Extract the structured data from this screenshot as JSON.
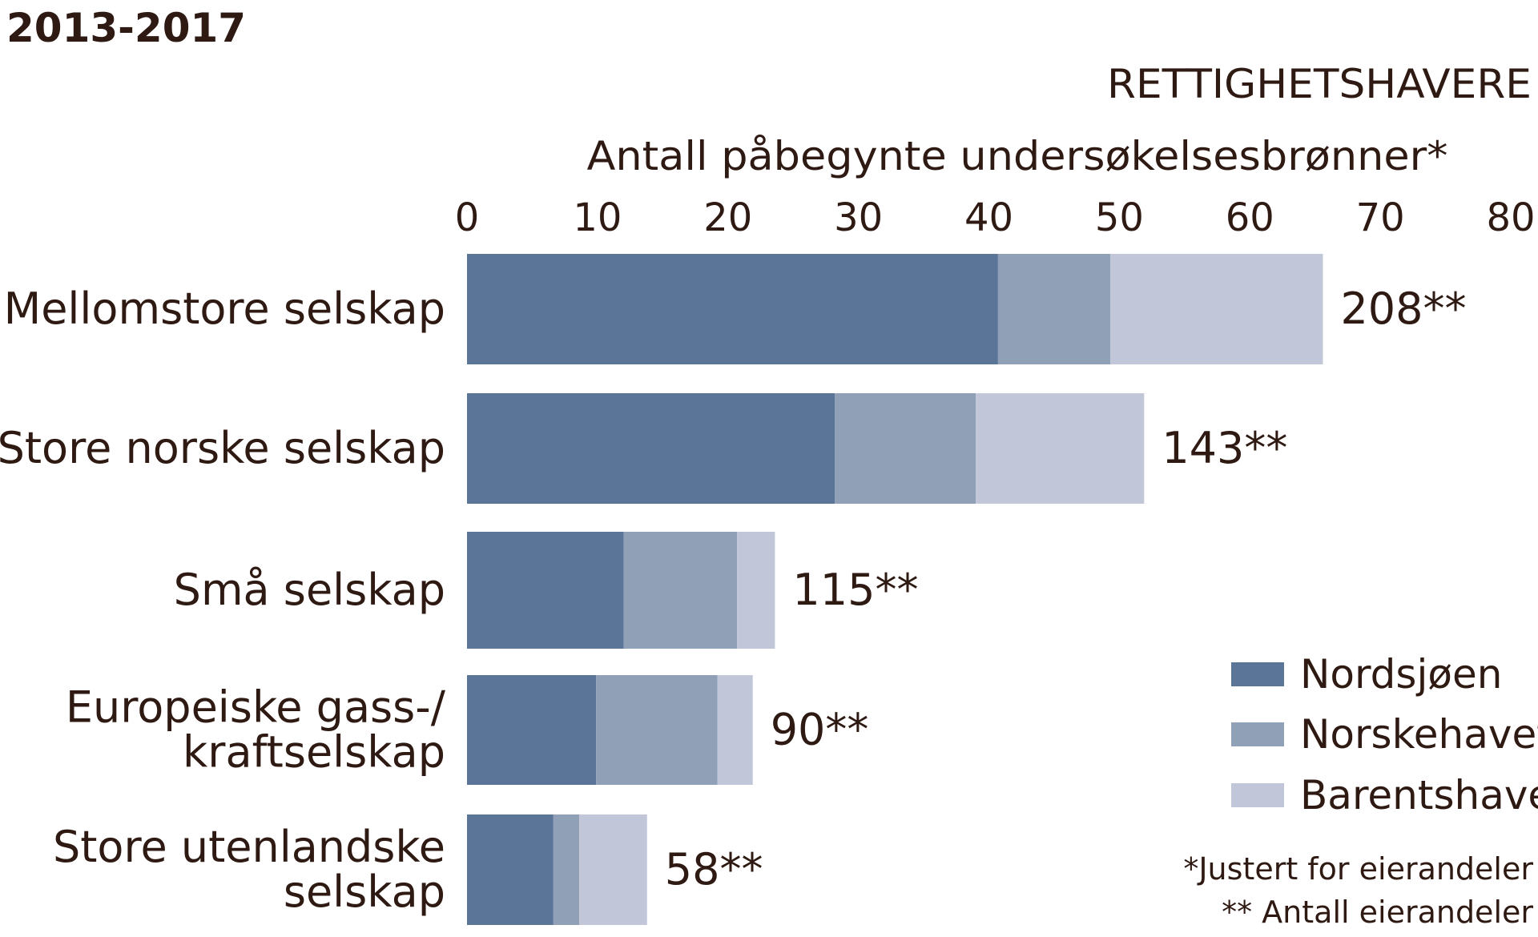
{
  "chart_data": {
    "type": "bar",
    "orientation": "horizontal",
    "stacked": true,
    "period_label": "2013-2017",
    "category_heading": "RETTIGHETSHAVERE",
    "xlabel": "Antall påbegynte undersøkelsesbrønner*",
    "xlim": [
      0,
      80
    ],
    "xticks": [
      "0",
      "10",
      "20",
      "30",
      "40",
      "50",
      "60",
      "70",
      "80"
    ],
    "grid": false,
    "legend_position": "right",
    "categories": [
      [
        "Mellomstore selskap"
      ],
      [
        "Store norske selskap"
      ],
      [
        "Små selskap"
      ],
      [
        "Europeiske gass-/",
        "kraftselskap"
      ],
      [
        "Store utenlandske",
        "selskap"
      ]
    ],
    "series": [
      {
        "name": "Nordsjøen",
        "color": "#5a7598",
        "values": [
          40.7,
          28.2,
          12.0,
          9.9,
          6.6
        ]
      },
      {
        "name": "Norskehavet",
        "color": "#8fa0b7",
        "values": [
          8.6,
          10.8,
          8.7,
          9.3,
          2.0
        ]
      },
      {
        "name": "Barentshavet",
        "color": "#c1c7d8",
        "values": [
          16.3,
          12.9,
          2.9,
          2.7,
          5.2
        ]
      }
    ],
    "annotations": [
      "208**",
      "143**",
      "115**",
      "90**",
      "58**"
    ],
    "footnotes": [
      "*Justert for eierandeler",
      "** Antall eierandeler"
    ]
  }
}
